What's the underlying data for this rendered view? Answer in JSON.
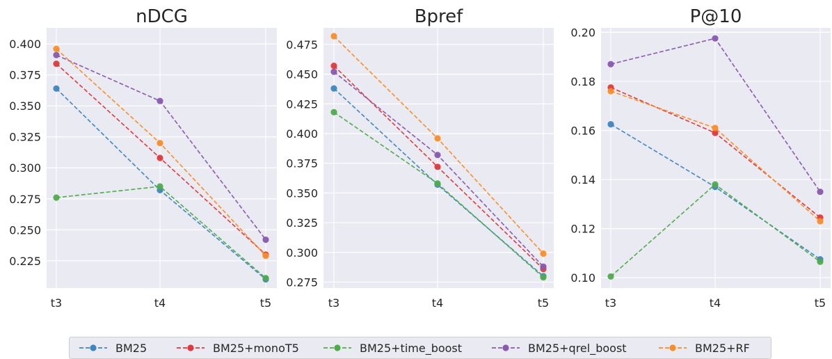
{
  "colors": {
    "BM25": "#3f86c0",
    "BM25+monoT5": "#e0393b",
    "BM25+time_boost": "#4fac4b",
    "BM25+qrel_boost": "#8a58ad",
    "BM25+RF": "#fb8d26",
    "plot_bg": "#eaeaf2",
    "grid": "#ffffff"
  },
  "legend": {
    "items": [
      "BM25",
      "BM25+monoT5",
      "BM25+time_boost",
      "BM25+qrel_boost",
      "BM25+RF"
    ]
  },
  "chart_data": [
    {
      "type": "line",
      "title": "nDCG",
      "categories": [
        "t3",
        "t4",
        "t5"
      ],
      "ylim": [
        0.203,
        0.413
      ],
      "yticks": [
        "0.225",
        "0.250",
        "0.275",
        "0.300",
        "0.325",
        "0.350",
        "0.375",
        "0.400"
      ],
      "grid": true,
      "series": [
        {
          "name": "BM25",
          "values": [
            0.364,
            0.282,
            0.21
          ]
        },
        {
          "name": "BM25+monoT5",
          "values": [
            0.384,
            0.308,
            0.23
          ]
        },
        {
          "name": "BM25+time_boost",
          "values": [
            0.276,
            0.285,
            0.211
          ]
        },
        {
          "name": "BM25+qrel_boost",
          "values": [
            0.391,
            0.354,
            0.242
          ]
        },
        {
          "name": "BM25+RF",
          "values": [
            0.396,
            0.32,
            0.229
          ]
        }
      ]
    },
    {
      "type": "line",
      "title": "Bpref",
      "categories": [
        "t3",
        "t4",
        "t5"
      ],
      "ylim": [
        0.27,
        0.489
      ],
      "yticks": [
        "0.275",
        "0.300",
        "0.325",
        "0.350",
        "0.375",
        "0.400",
        "0.425",
        "0.450",
        "0.475"
      ],
      "grid": true,
      "series": [
        {
          "name": "BM25",
          "values": [
            0.438,
            0.357,
            0.28
          ]
        },
        {
          "name": "BM25+monoT5",
          "values": [
            0.457,
            0.372,
            0.286
          ]
        },
        {
          "name": "BM25+time_boost",
          "values": [
            0.418,
            0.358,
            0.279
          ]
        },
        {
          "name": "BM25+qrel_boost",
          "values": [
            0.452,
            0.382,
            0.288
          ]
        },
        {
          "name": "BM25+RF",
          "values": [
            0.482,
            0.396,
            0.299
          ]
        }
      ]
    },
    {
      "type": "line",
      "title": "P@10",
      "categories": [
        "t3",
        "t4",
        "t5"
      ],
      "ylim": [
        0.0958,
        0.2018
      ],
      "yticks": [
        "0.10",
        "0.12",
        "0.14",
        "0.16",
        "0.18",
        "0.20"
      ],
      "grid": true,
      "series": [
        {
          "name": "BM25",
          "values": [
            0.1625,
            0.137,
            0.1075
          ]
        },
        {
          "name": "BM25+monoT5",
          "values": [
            0.1775,
            0.159,
            0.1245
          ]
        },
        {
          "name": "BM25+time_boost",
          "values": [
            0.1005,
            0.138,
            0.1065
          ]
        },
        {
          "name": "BM25+qrel_boost",
          "values": [
            0.187,
            0.1975,
            0.135
          ]
        },
        {
          "name": "BM25+RF",
          "values": [
            0.176,
            0.161,
            0.123
          ]
        }
      ]
    }
  ]
}
